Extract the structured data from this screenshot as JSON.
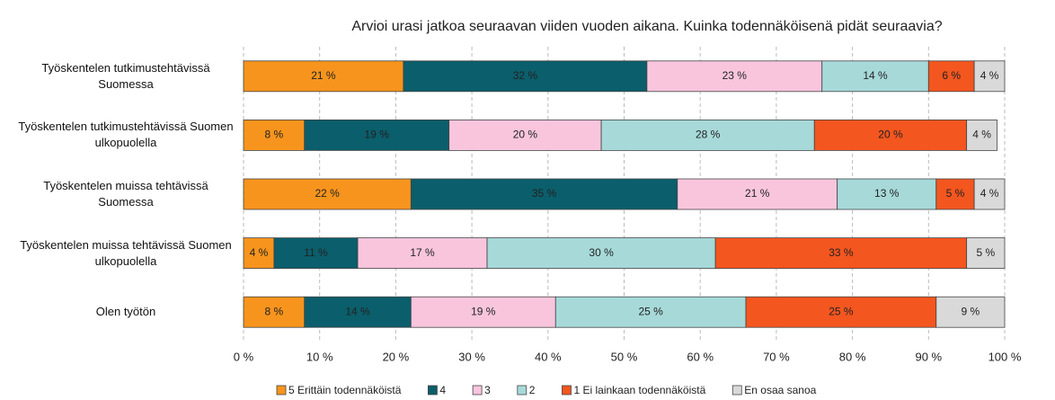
{
  "chart_data": {
    "type": "stacked_bar_horizontal",
    "title": "Arvioi urasi jatkoa seuraavan viiden vuoden aikana. Kuinka todennäköisenä pidät seuraavia?",
    "categories": [
      "Työskentelen tutkimustehtävissä Suomessa",
      "Työskentelen tutkimustehtävissä Suomen ulkopuolella",
      "Työskentelen muissa tehtävissä Suomessa",
      "Työskentelen muissa tehtävissä Suomen ulkopuolella",
      "Olen työtön"
    ],
    "series": [
      {
        "name": "5 Erittäin todennäköistä",
        "color": "#F7941D",
        "values": [
          21,
          8,
          22,
          4,
          8
        ],
        "value_labels": [
          "21 %",
          "8 %",
          "22 %",
          "4 %",
          "8 %"
        ]
      },
      {
        "name": "4",
        "color": "#0B5E6B",
        "values": [
          32,
          19,
          35,
          11,
          14
        ],
        "value_labels": [
          "32 %",
          "19 %",
          "35 %",
          "11 %",
          "14 %"
        ]
      },
      {
        "name": "3",
        "color": "#F8C5DD",
        "values": [
          23,
          20,
          21,
          17,
          19
        ],
        "value_labels": [
          "23 %",
          "20 %",
          "21 %",
          "17 %",
          "19 %"
        ]
      },
      {
        "name": "2",
        "color": "#A7D9D9",
        "values": [
          14,
          28,
          13,
          30,
          25
        ],
        "value_labels": [
          "14 %",
          "28 %",
          "13 %",
          "30 %",
          "25 %"
        ]
      },
      {
        "name": "1 Ei lainkaan todennäköistä",
        "color": "#F4561F",
        "values": [
          6,
          20,
          5,
          33,
          25
        ],
        "value_labels": [
          "6 %",
          "20 %",
          "5 %",
          "33 %",
          "25 %"
        ]
      },
      {
        "name": "En osaa sanoa",
        "color": "#D9D9D9",
        "values": [
          4,
          4,
          4,
          5,
          9
        ],
        "value_labels": [
          "4 %",
          "4 %",
          "4 %",
          "5 %",
          "9 %"
        ]
      }
    ],
    "xlim": [
      0,
      100
    ],
    "xticks": [
      {
        "value": 0,
        "label": "0 %"
      },
      {
        "value": 10,
        "label": "10 %"
      },
      {
        "value": 20,
        "label": "20 %"
      },
      {
        "value": 30,
        "label": "30 %"
      },
      {
        "value": 40,
        "label": "40 %"
      },
      {
        "value": 50,
        "label": "50 %"
      },
      {
        "value": 60,
        "label": "60 %"
      },
      {
        "value": 70,
        "label": "70 %"
      },
      {
        "value": 80,
        "label": "80 %"
      },
      {
        "value": 90,
        "label": "90 %"
      },
      {
        "value": 100,
        "label": "100 %"
      }
    ],
    "grid": true,
    "legend": "bottom"
  }
}
